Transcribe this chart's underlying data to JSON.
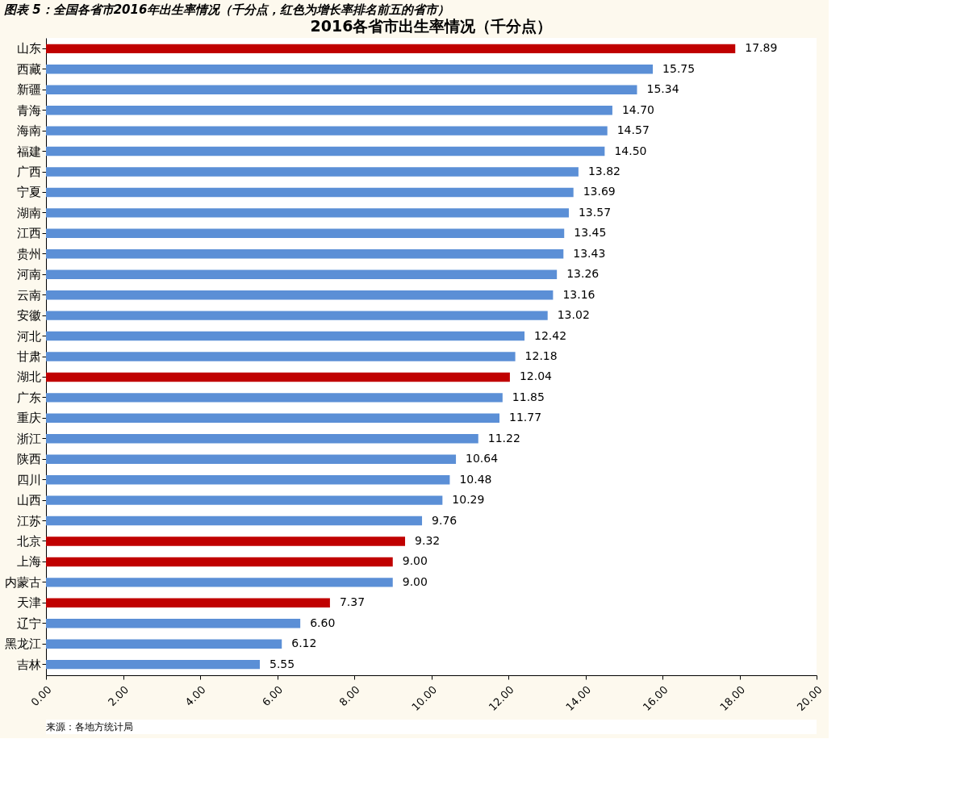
{
  "chart_data": {
    "type": "bar",
    "orientation": "horizontal",
    "title": "图表 5：全国各省市2016年出生率情况（千分点，红色为增长率排名前五的省市）",
    "subtitle": "2016各省市出生率情况（千分点）",
    "categories": [
      "山东",
      "西藏",
      "新疆",
      "青海",
      "海南",
      "福建",
      "广西",
      "宁夏",
      "湖南",
      "江西",
      "贵州",
      "河南",
      "云南",
      "安徽",
      "河北",
      "甘肃",
      "湖北",
      "广东",
      "重庆",
      "浙江",
      "陕西",
      "四川",
      "山西",
      "江苏",
      "北京",
      "上海",
      "内蒙古",
      "天津",
      "辽宁",
      "黑龙江",
      "吉林"
    ],
    "values": [
      17.89,
      15.75,
      15.34,
      14.7,
      14.57,
      14.5,
      13.82,
      13.69,
      13.57,
      13.45,
      13.43,
      13.26,
      13.16,
      13.02,
      12.42,
      12.18,
      12.04,
      11.85,
      11.77,
      11.22,
      10.64,
      10.48,
      10.29,
      9.76,
      9.32,
      9.0,
      9.0,
      7.37,
      6.6,
      6.12,
      5.55
    ],
    "value_labels": [
      "17.89",
      "15.75",
      "15.34",
      "14.70",
      "14.57",
      "14.50",
      "13.82",
      "13.69",
      "13.57",
      "13.45",
      "13.43",
      "13.26",
      "13.16",
      "13.02",
      "12.42",
      "12.18",
      "12.04",
      "11.85",
      "11.77",
      "11.22",
      "10.64",
      "10.48",
      "10.29",
      "9.76",
      "9.32",
      "9.00",
      "9.00",
      "7.37",
      "6.60",
      "6.12",
      "5.55"
    ],
    "colors": [
      "#c00000",
      "#5b8fd6",
      "#5b8fd6",
      "#5b8fd6",
      "#5b8fd6",
      "#5b8fd6",
      "#5b8fd6",
      "#5b8fd6",
      "#5b8fd6",
      "#5b8fd6",
      "#5b8fd6",
      "#5b8fd6",
      "#5b8fd6",
      "#5b8fd6",
      "#5b8fd6",
      "#5b8fd6",
      "#c00000",
      "#5b8fd6",
      "#5b8fd6",
      "#5b8fd6",
      "#5b8fd6",
      "#5b8fd6",
      "#5b8fd6",
      "#5b8fd6",
      "#c00000",
      "#c00000",
      "#5b8fd6",
      "#c00000",
      "#5b8fd6",
      "#5b8fd6",
      "#5b8fd6"
    ],
    "xlim": [
      0,
      20
    ],
    "xticks": [
      {
        "value": 0,
        "label": "0.00"
      },
      {
        "value": 2,
        "label": "2.00"
      },
      {
        "value": 4,
        "label": "4.00"
      },
      {
        "value": 6,
        "label": "6.00"
      },
      {
        "value": 8,
        "label": "8.00"
      },
      {
        "value": 10,
        "label": "10.00"
      },
      {
        "value": 12,
        "label": "12.00"
      },
      {
        "value": 14,
        "label": "14.00"
      },
      {
        "value": 16,
        "label": "16.00"
      },
      {
        "value": 18,
        "label": "18.00"
      },
      {
        "value": 20,
        "label": "20.00"
      }
    ],
    "grid": false,
    "annotations": [
      "来源：各地方统计局"
    ]
  }
}
